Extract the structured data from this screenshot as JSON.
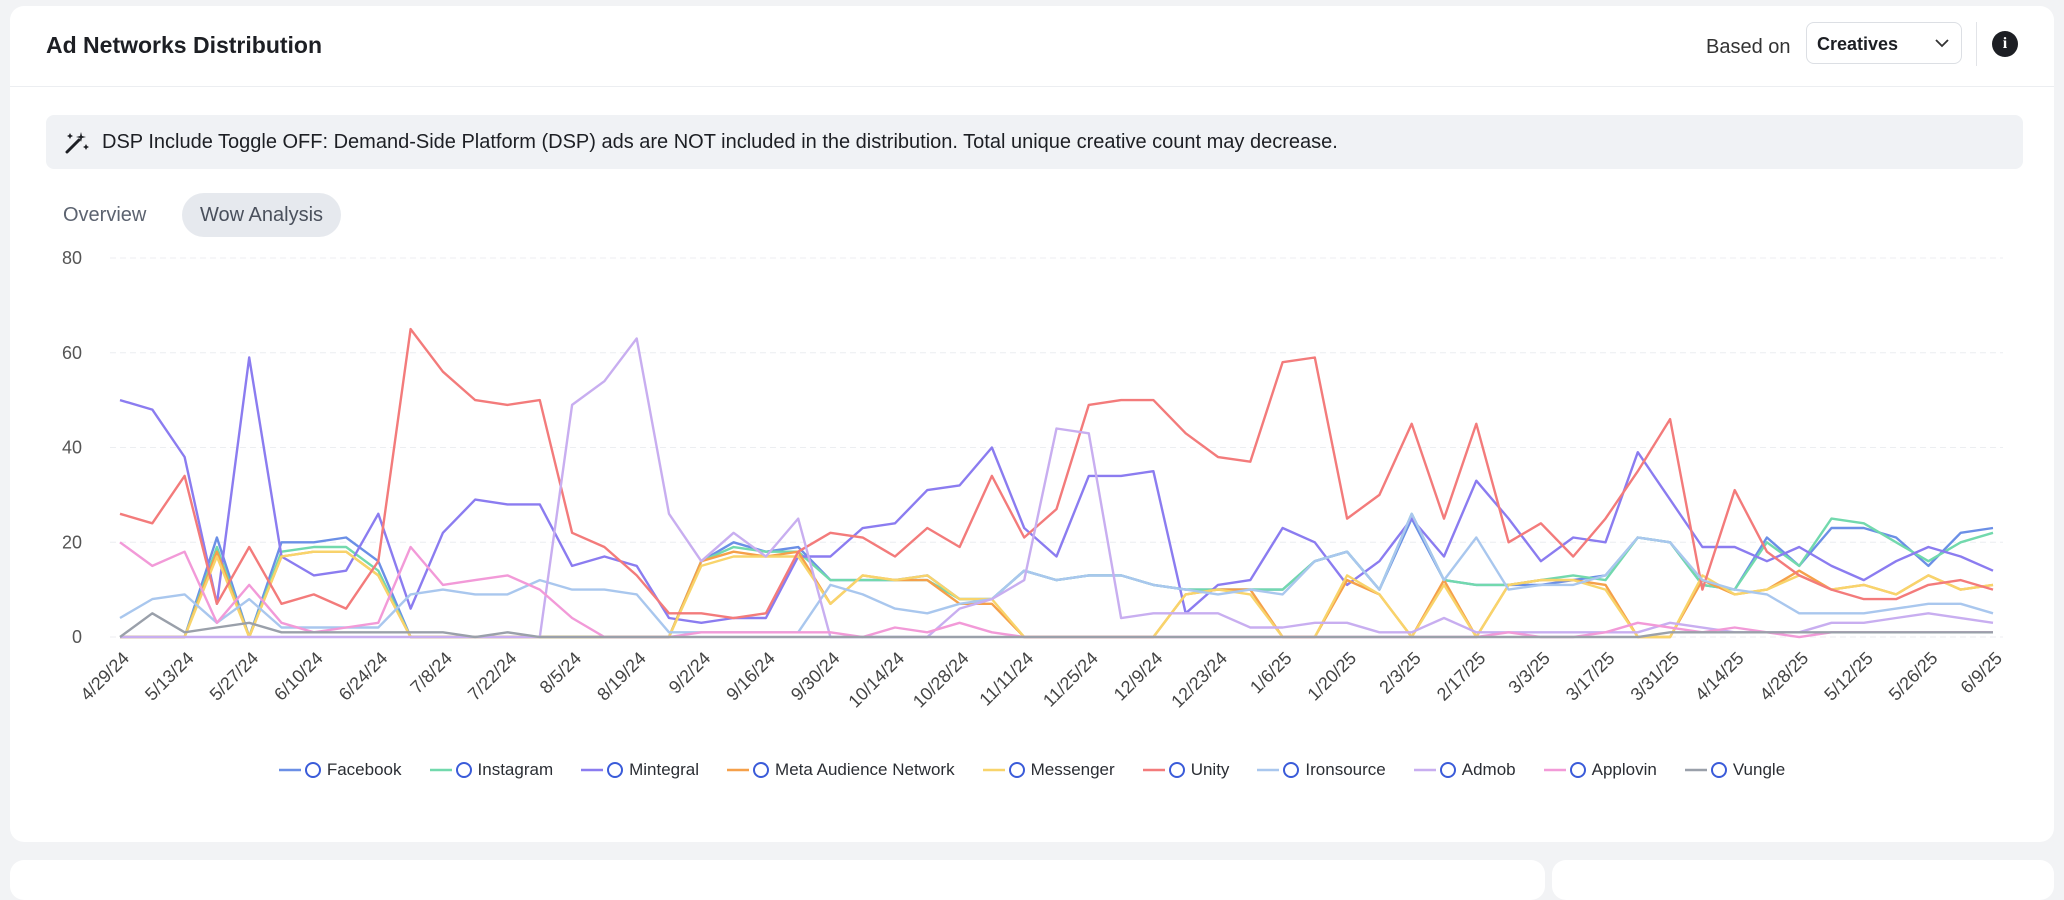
{
  "header": {
    "based_on": "Based on",
    "dropdown": "Creatives",
    "banner": "DSP Include Toggle OFF: Demand-Side Platform (DSP) ads are NOT included in the distribution. Total unique creative count may decrease.",
    "tabs": [
      "Overview",
      "Wow Analysis"
    ]
  },
  "chart_data": {
    "type": "line",
    "title": "Ad Networks Distribution",
    "categories": [
      "4/29/24",
      null,
      "5/13/24",
      null,
      "5/27/24",
      null,
      "6/10/24",
      null,
      "6/24/24",
      null,
      "7/8/24",
      null,
      "7/22/24",
      null,
      "8/5/24",
      null,
      "8/19/24",
      null,
      "9/2/24",
      null,
      "9/16/24",
      null,
      "9/30/24",
      null,
      "10/14/24",
      null,
      "10/28/24",
      null,
      "11/11/24",
      null,
      "11/25/24",
      null,
      "12/9/24",
      null,
      "12/23/24",
      null,
      "1/6/25",
      null,
      "1/20/25",
      null,
      "2/3/25",
      null,
      "2/17/25",
      null,
      "3/3/25",
      null,
      "3/17/25",
      null,
      "3/31/25",
      null,
      "4/14/25",
      null,
      "4/28/25",
      null,
      "5/12/25",
      null,
      "5/26/25",
      null,
      "6/9/25"
    ],
    "ylim": [
      0,
      80
    ],
    "yticks": [
      0,
      20,
      40,
      60,
      80
    ],
    "grid": true,
    "series": [
      {
        "name": "Facebook",
        "color": "#6b8fe6",
        "values": [
          0,
          0,
          0,
          21,
          0,
          20,
          20,
          21,
          16,
          0,
          0,
          0,
          0,
          0,
          0,
          0,
          0,
          0,
          16,
          20,
          18,
          19,
          12,
          12,
          12,
          13,
          8,
          8,
          14,
          12,
          13,
          13,
          11,
          10,
          10,
          10,
          10,
          16,
          18,
          10,
          25,
          12,
          11,
          11,
          11,
          12,
          13,
          21,
          20,
          11,
          10,
          21,
          15,
          23,
          23,
          21,
          15,
          22,
          23
        ]
      },
      {
        "name": "Instagram",
        "color": "#72d9ad",
        "values": [
          0,
          0,
          0,
          19,
          0,
          18,
          19,
          19,
          14,
          0,
          0,
          0,
          0,
          0,
          0,
          0,
          0,
          0,
          16,
          19,
          18,
          18,
          12,
          12,
          12,
          12,
          8,
          8,
          14,
          12,
          13,
          13,
          11,
          10,
          10,
          10,
          10,
          16,
          18,
          10,
          26,
          12,
          11,
          11,
          12,
          13,
          12,
          21,
          20,
          11,
          10,
          20,
          15,
          25,
          24,
          20,
          16,
          20,
          22
        ]
      },
      {
        "name": "Mintegral",
        "color": "#8b7cf0",
        "values": [
          50,
          48,
          38,
          7,
          59,
          17,
          13,
          14,
          26,
          6,
          22,
          29,
          28,
          28,
          15,
          17,
          15,
          4,
          3,
          4,
          4,
          17,
          17,
          23,
          24,
          31,
          32,
          40,
          23,
          17,
          34,
          34,
          35,
          5,
          11,
          12,
          23,
          20,
          11,
          16,
          25,
          17,
          33,
          25,
          16,
          21,
          20,
          39,
          29,
          19,
          19,
          16,
          19,
          15,
          12,
          16,
          19,
          17,
          14
        ]
      },
      {
        "name": "Meta Audience Network",
        "color": "#f5a04a",
        "values": [
          0,
          0,
          0,
          18,
          0,
          17,
          18,
          18,
          13,
          0,
          0,
          0,
          0,
          0,
          0,
          0,
          0,
          0,
          16,
          18,
          17,
          18,
          7,
          13,
          12,
          12,
          7,
          7,
          0,
          0,
          0,
          0,
          0,
          9,
          10,
          10,
          0,
          0,
          12,
          9,
          0,
          12,
          0,
          11,
          12,
          12,
          11,
          0,
          0,
          12,
          9,
          10,
          14,
          10,
          11,
          9,
          13,
          10,
          11
        ]
      },
      {
        "name": "Messenger",
        "color": "#f8d46b",
        "values": [
          0,
          0,
          0,
          17,
          0,
          17,
          18,
          18,
          13,
          0,
          0,
          0,
          0,
          0,
          0,
          0,
          0,
          0,
          15,
          17,
          17,
          17,
          7,
          13,
          12,
          13,
          8,
          8,
          0,
          0,
          0,
          0,
          0,
          9,
          10,
          9,
          0,
          0,
          13,
          9,
          0,
          11,
          0,
          11,
          12,
          12,
          10,
          0,
          0,
          13,
          9,
          10,
          13,
          10,
          11,
          9,
          13,
          10,
          11
        ]
      },
      {
        "name": "Unity",
        "color": "#f37b7b",
        "values": [
          26,
          24,
          34,
          7,
          19,
          7,
          9,
          6,
          16,
          65,
          56,
          50,
          49,
          50,
          22,
          19,
          13,
          5,
          5,
          4,
          5,
          18,
          22,
          21,
          17,
          23,
          19,
          34,
          21,
          27,
          49,
          50,
          50,
          43,
          38,
          37,
          58,
          59,
          25,
          30,
          45,
          25,
          45,
          20,
          24,
          17,
          25,
          35,
          46,
          10,
          31,
          18,
          13,
          10,
          8,
          8,
          11,
          12,
          10
        ]
      },
      {
        "name": "Ironsource",
        "color": "#a9c7ee",
        "values": [
          4,
          8,
          9,
          3,
          8,
          2,
          2,
          2,
          2,
          9,
          10,
          9,
          9,
          12,
          10,
          10,
          9,
          1,
          1,
          1,
          1,
          1,
          11,
          9,
          6,
          5,
          7,
          8,
          14,
          12,
          13,
          13,
          11,
          10,
          9,
          10,
          9,
          16,
          18,
          10,
          26,
          12,
          21,
          10,
          11,
          11,
          13,
          21,
          20,
          12,
          10,
          9,
          5,
          5,
          5,
          6,
          7,
          7,
          5
        ]
      },
      {
        "name": "Admob",
        "color": "#c8aef0",
        "values": [
          0,
          0,
          0,
          0,
          0,
          0,
          0,
          0,
          0,
          0,
          0,
          0,
          0,
          0,
          49,
          54,
          63,
          26,
          16,
          22,
          17,
          25,
          0,
          0,
          0,
          0,
          6,
          8,
          12,
          44,
          43,
          4,
          5,
          5,
          5,
          2,
          2,
          3,
          3,
          1,
          1,
          4,
          1,
          1,
          1,
          1,
          1,
          1,
          3,
          2,
          1,
          1,
          1,
          3,
          3,
          4,
          5,
          4,
          3
        ]
      },
      {
        "name": "Applovin",
        "color": "#f29ad8",
        "values": [
          20,
          15,
          18,
          3,
          11,
          3,
          1,
          2,
          3,
          19,
          11,
          12,
          13,
          10,
          4,
          0,
          0,
          0,
          1,
          1,
          1,
          1,
          1,
          0,
          2,
          1,
          3,
          1,
          0,
          0,
          0,
          0,
          0,
          0,
          0,
          0,
          0,
          0,
          0,
          0,
          0,
          0,
          0,
          1,
          0,
          0,
          1,
          3,
          2,
          1,
          2,
          1,
          0,
          1,
          1,
          1,
          1,
          1,
          1
        ]
      },
      {
        "name": "Vungle",
        "color": "#9aa0aa",
        "values": [
          0,
          5,
          1,
          2,
          3,
          1,
          1,
          1,
          1,
          1,
          1,
          0,
          1,
          0,
          0,
          0,
          0,
          0,
          0,
          0,
          0,
          0,
          0,
          0,
          0,
          0,
          0,
          0,
          0,
          0,
          0,
          0,
          0,
          0,
          0,
          0,
          0,
          0,
          0,
          0,
          0,
          0,
          0,
          0,
          0,
          0,
          0,
          0,
          1,
          1,
          1,
          1,
          1,
          1,
          1,
          1,
          1,
          1,
          1
        ]
      }
    ]
  }
}
